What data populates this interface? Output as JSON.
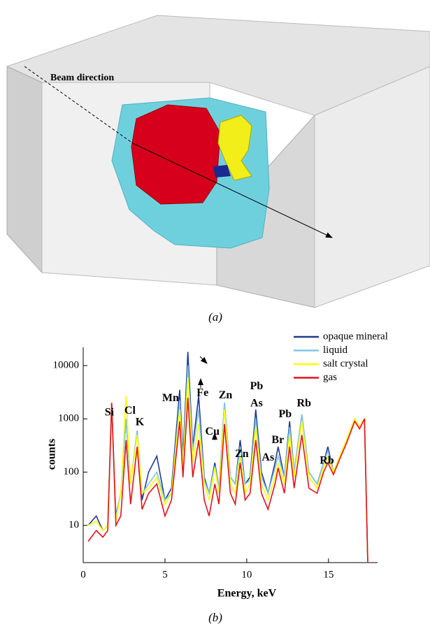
{
  "figure_a": {
    "beam_label": "Beam direction",
    "caption": "(a)"
  },
  "chart_data": {
    "type": "line",
    "caption": "(b)",
    "x_label": "Energy, keV",
    "y_label": "counts",
    "log_y": true,
    "legend": "upper right",
    "xlim": [
      0,
      18
    ],
    "xticks": [
      0,
      5,
      10,
      15
    ],
    "ylim": [
      2,
      22000
    ],
    "yticks": [
      10,
      100,
      1000,
      10000
    ],
    "x": [
      0.3,
      0.8,
      1.2,
      1.5,
      1.74,
      2.0,
      2.3,
      2.62,
      2.9,
      3.3,
      3.6,
      4.0,
      4.5,
      5.0,
      5.4,
      5.9,
      6.1,
      6.4,
      6.7,
      7.06,
      7.4,
      7.7,
      8.05,
      8.3,
      8.64,
      9.0,
      9.3,
      9.6,
      9.9,
      10.2,
      10.55,
      10.9,
      11.3,
      11.73,
      11.92,
      12.3,
      12.62,
      12.9,
      13.37,
      13.8,
      14.3,
      14.7,
      14.96,
      15.3,
      15.7,
      16.1,
      16.6,
      16.9,
      17.2,
      17.4
    ],
    "series": [
      {
        "name": "opaque mineral",
        "color": "#1f3a93",
        "values": [
          10,
          15,
          8,
          10,
          2000,
          15,
          40,
          1000,
          60,
          600,
          30,
          100,
          200,
          30,
          50,
          3500,
          200,
          18000,
          300,
          2700,
          80,
          40,
          150,
          50,
          2000,
          80,
          60,
          400,
          60,
          80,
          1500,
          100,
          40,
          150,
          300,
          80,
          900,
          100,
          1200,
          100,
          60,
          150,
          300,
          100,
          200,
          400,
          1000,
          700,
          1000,
          2
        ]
      },
      {
        "name": "liquid",
        "color": "#7ec8e3",
        "values": [
          10,
          12,
          8,
          10,
          2000,
          14,
          40,
          1000,
          60,
          600,
          40,
          60,
          100,
          30,
          40,
          2200,
          150,
          10000,
          250,
          1500,
          70,
          40,
          130,
          50,
          2000,
          80,
          60,
          300,
          60,
          70,
          1000,
          80,
          40,
          120,
          200,
          80,
          700,
          100,
          1200,
          100,
          60,
          150,
          250,
          100,
          200,
          400,
          1000,
          700,
          1000,
          2
        ]
      },
      {
        "name": "salt crystal",
        "color": "#ffff00",
        "values": [
          10,
          12,
          8,
          10,
          2000,
          12,
          40,
          2700,
          60,
          500,
          40,
          50,
          80,
          25,
          40,
          1500,
          120,
          6000,
          150,
          800,
          60,
          30,
          120,
          40,
          1500,
          60,
          40,
          200,
          40,
          60,
          700,
          60,
          30,
          80,
          150,
          60,
          500,
          80,
          900,
          80,
          50,
          120,
          200,
          100,
          200,
          400,
          1000,
          700,
          1000,
          2
        ]
      },
      {
        "name": "gas",
        "color": "#e8101a",
        "values": [
          5,
          8,
          6,
          8,
          2000,
          10,
          15,
          400,
          25,
          300,
          20,
          40,
          60,
          15,
          30,
          900,
          80,
          2500,
          80,
          400,
          30,
          15,
          60,
          25,
          800,
          40,
          25,
          150,
          30,
          40,
          400,
          40,
          20,
          60,
          120,
          40,
          300,
          50,
          500,
          50,
          40,
          100,
          150,
          90,
          180,
          350,
          900,
          650,
          1000,
          2
        ]
      }
    ],
    "annotations": [
      {
        "text": "Si",
        "x": 1.6,
        "y": 1300
      },
      {
        "text": "Cl",
        "x": 2.86,
        "y": 1400
      },
      {
        "text": "K",
        "x": 3.46,
        "y": 850
      },
      {
        "text": "Mn",
        "x": 5.34,
        "y": 2400
      },
      {
        "text": "Fe",
        "x": 7.3,
        "y": 3000
      },
      {
        "text": "Zn",
        "x": 8.7,
        "y": 2700
      },
      {
        "text": "Cu",
        "x": 7.9,
        "y": 560
      },
      {
        "text": "Zn",
        "x": 9.7,
        "y": 215
      },
      {
        "text": "Pb",
        "x": 10.6,
        "y": 4000
      },
      {
        "text": "As",
        "x": 10.6,
        "y": 1900
      },
      {
        "text": "Br",
        "x": 11.9,
        "y": 390
      },
      {
        "text": "As",
        "x": 11.3,
        "y": 185
      },
      {
        "text": "Pb",
        "x": 12.35,
        "y": 1200
      },
      {
        "text": "Rb",
        "x": 13.5,
        "y": 1900
      },
      {
        "text": "Rb",
        "x": 14.9,
        "y": 160
      }
    ]
  }
}
